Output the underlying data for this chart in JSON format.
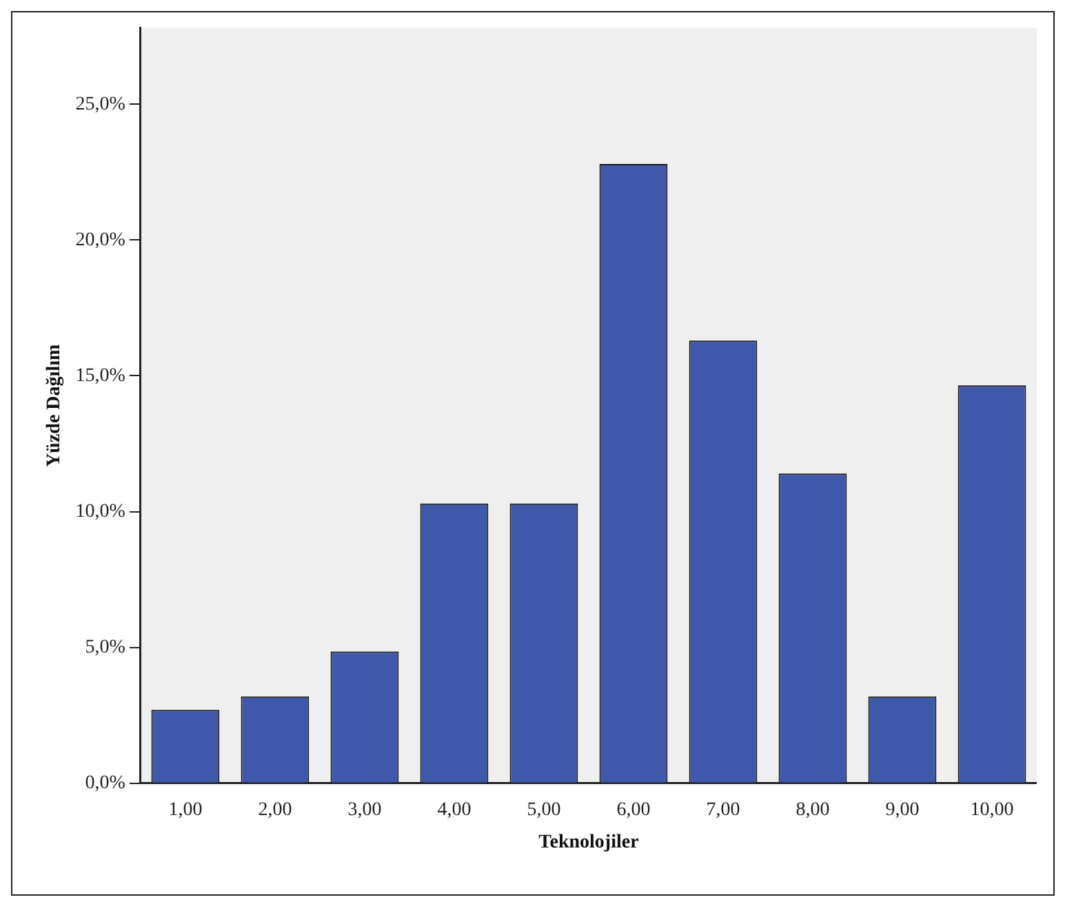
{
  "chart_data": {
    "type": "bar",
    "xlabel": "Teknolojiler",
    "ylabel": "Yüzde Dağılım",
    "categories": [
      "1,00",
      "2,00",
      "3,00",
      "4,00",
      "5,00",
      "6,00",
      "7,00",
      "8,00",
      "9,00",
      "10,00"
    ],
    "values": [
      2.7,
      3.2,
      4.85,
      10.3,
      10.3,
      22.8,
      16.3,
      11.4,
      3.2,
      14.65
    ],
    "color": "#3f58aa",
    "ylim": [
      0,
      27.8
    ],
    "yticks": [
      {
        "value": 0,
        "label": "0,0%"
      },
      {
        "value": 5,
        "label": "5,0%"
      },
      {
        "value": 10,
        "label": "10,0%"
      },
      {
        "value": 15,
        "label": "15,0%"
      },
      {
        "value": 20,
        "label": "20,0%"
      },
      {
        "value": 25,
        "label": "25,0%"
      }
    ],
    "grid": false,
    "legend": false
  }
}
